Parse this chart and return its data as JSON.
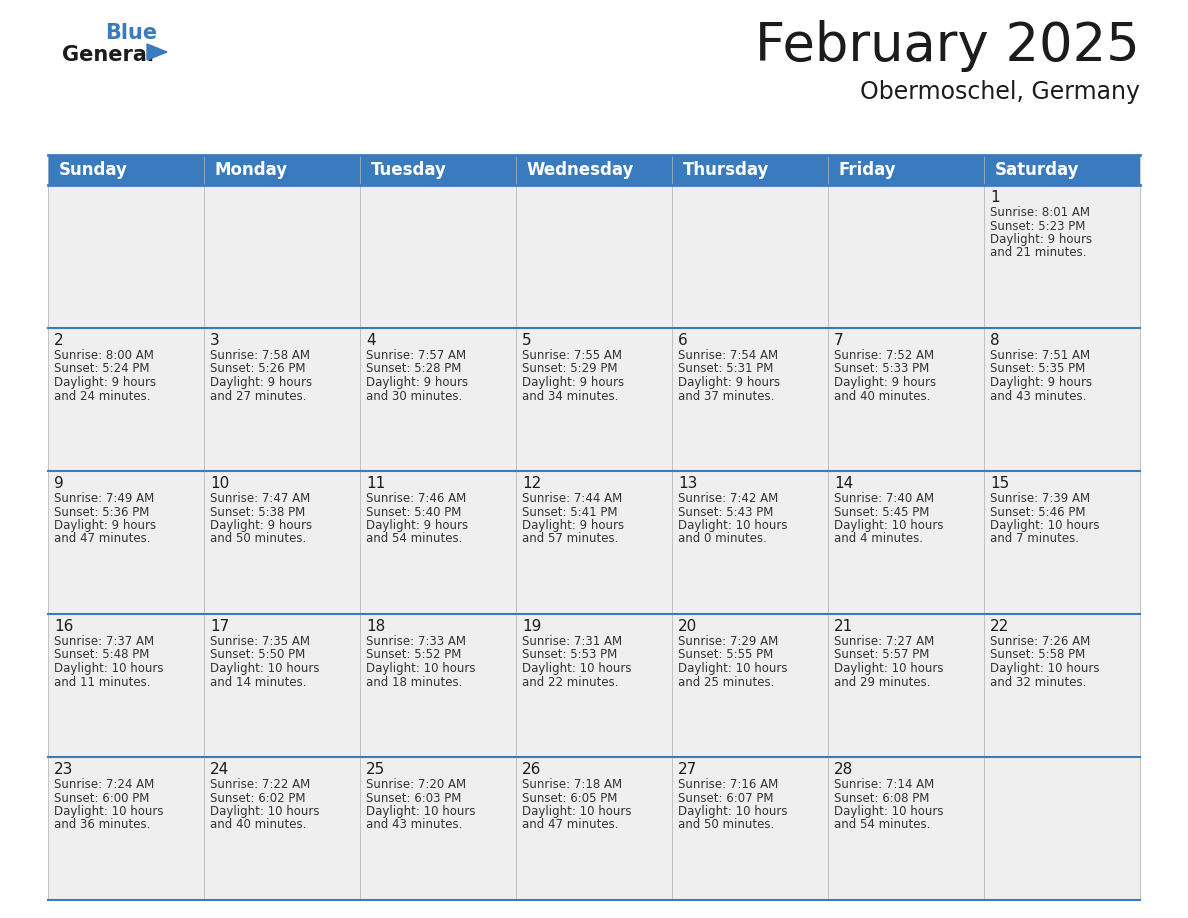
{
  "title": "February 2025",
  "subtitle": "Obermoschel, Germany",
  "header_color": "#3a7bbf",
  "header_text_color": "#ffffff",
  "day_names": [
    "Sunday",
    "Monday",
    "Tuesday",
    "Wednesday",
    "Thursday",
    "Friday",
    "Saturday"
  ],
  "title_fontsize": 38,
  "subtitle_fontsize": 17,
  "header_fontsize": 12,
  "cell_fontsize": 8.5,
  "day_num_fontsize": 11,
  "background_color": "#ffffff",
  "cell_bg_color": "#efefef",
  "separator_color": "#3a7bbf",
  "text_color": "#333333",
  "days": [
    {
      "day": 1,
      "col": 6,
      "row": 0,
      "sunrise": "8:01 AM",
      "sunset": "5:23 PM",
      "daylight_h": "9 hours",
      "daylight_m": "and 21 minutes."
    },
    {
      "day": 2,
      "col": 0,
      "row": 1,
      "sunrise": "8:00 AM",
      "sunset": "5:24 PM",
      "daylight_h": "9 hours",
      "daylight_m": "and 24 minutes."
    },
    {
      "day": 3,
      "col": 1,
      "row": 1,
      "sunrise": "7:58 AM",
      "sunset": "5:26 PM",
      "daylight_h": "9 hours",
      "daylight_m": "and 27 minutes."
    },
    {
      "day": 4,
      "col": 2,
      "row": 1,
      "sunrise": "7:57 AM",
      "sunset": "5:28 PM",
      "daylight_h": "9 hours",
      "daylight_m": "and 30 minutes."
    },
    {
      "day": 5,
      "col": 3,
      "row": 1,
      "sunrise": "7:55 AM",
      "sunset": "5:29 PM",
      "daylight_h": "9 hours",
      "daylight_m": "and 34 minutes."
    },
    {
      "day": 6,
      "col": 4,
      "row": 1,
      "sunrise": "7:54 AM",
      "sunset": "5:31 PM",
      "daylight_h": "9 hours",
      "daylight_m": "and 37 minutes."
    },
    {
      "day": 7,
      "col": 5,
      "row": 1,
      "sunrise": "7:52 AM",
      "sunset": "5:33 PM",
      "daylight_h": "9 hours",
      "daylight_m": "and 40 minutes."
    },
    {
      "day": 8,
      "col": 6,
      "row": 1,
      "sunrise": "7:51 AM",
      "sunset": "5:35 PM",
      "daylight_h": "9 hours",
      "daylight_m": "and 43 minutes."
    },
    {
      "day": 9,
      "col": 0,
      "row": 2,
      "sunrise": "7:49 AM",
      "sunset": "5:36 PM",
      "daylight_h": "9 hours",
      "daylight_m": "and 47 minutes."
    },
    {
      "day": 10,
      "col": 1,
      "row": 2,
      "sunrise": "7:47 AM",
      "sunset": "5:38 PM",
      "daylight_h": "9 hours",
      "daylight_m": "and 50 minutes."
    },
    {
      "day": 11,
      "col": 2,
      "row": 2,
      "sunrise": "7:46 AM",
      "sunset": "5:40 PM",
      "daylight_h": "9 hours",
      "daylight_m": "and 54 minutes."
    },
    {
      "day": 12,
      "col": 3,
      "row": 2,
      "sunrise": "7:44 AM",
      "sunset": "5:41 PM",
      "daylight_h": "9 hours",
      "daylight_m": "and 57 minutes."
    },
    {
      "day": 13,
      "col": 4,
      "row": 2,
      "sunrise": "7:42 AM",
      "sunset": "5:43 PM",
      "daylight_h": "10 hours",
      "daylight_m": "and 0 minutes."
    },
    {
      "day": 14,
      "col": 5,
      "row": 2,
      "sunrise": "7:40 AM",
      "sunset": "5:45 PM",
      "daylight_h": "10 hours",
      "daylight_m": "and 4 minutes."
    },
    {
      "day": 15,
      "col": 6,
      "row": 2,
      "sunrise": "7:39 AM",
      "sunset": "5:46 PM",
      "daylight_h": "10 hours",
      "daylight_m": "and 7 minutes."
    },
    {
      "day": 16,
      "col": 0,
      "row": 3,
      "sunrise": "7:37 AM",
      "sunset": "5:48 PM",
      "daylight_h": "10 hours",
      "daylight_m": "and 11 minutes."
    },
    {
      "day": 17,
      "col": 1,
      "row": 3,
      "sunrise": "7:35 AM",
      "sunset": "5:50 PM",
      "daylight_h": "10 hours",
      "daylight_m": "and 14 minutes."
    },
    {
      "day": 18,
      "col": 2,
      "row": 3,
      "sunrise": "7:33 AM",
      "sunset": "5:52 PM",
      "daylight_h": "10 hours",
      "daylight_m": "and 18 minutes."
    },
    {
      "day": 19,
      "col": 3,
      "row": 3,
      "sunrise": "7:31 AM",
      "sunset": "5:53 PM",
      "daylight_h": "10 hours",
      "daylight_m": "and 22 minutes."
    },
    {
      "day": 20,
      "col": 4,
      "row": 3,
      "sunrise": "7:29 AM",
      "sunset": "5:55 PM",
      "daylight_h": "10 hours",
      "daylight_m": "and 25 minutes."
    },
    {
      "day": 21,
      "col": 5,
      "row": 3,
      "sunrise": "7:27 AM",
      "sunset": "5:57 PM",
      "daylight_h": "10 hours",
      "daylight_m": "and 29 minutes."
    },
    {
      "day": 22,
      "col": 6,
      "row": 3,
      "sunrise": "7:26 AM",
      "sunset": "5:58 PM",
      "daylight_h": "10 hours",
      "daylight_m": "and 32 minutes."
    },
    {
      "day": 23,
      "col": 0,
      "row": 4,
      "sunrise": "7:24 AM",
      "sunset": "6:00 PM",
      "daylight_h": "10 hours",
      "daylight_m": "and 36 minutes."
    },
    {
      "day": 24,
      "col": 1,
      "row": 4,
      "sunrise": "7:22 AM",
      "sunset": "6:02 PM",
      "daylight_h": "10 hours",
      "daylight_m": "and 40 minutes."
    },
    {
      "day": 25,
      "col": 2,
      "row": 4,
      "sunrise": "7:20 AM",
      "sunset": "6:03 PM",
      "daylight_h": "10 hours",
      "daylight_m": "and 43 minutes."
    },
    {
      "day": 26,
      "col": 3,
      "row": 4,
      "sunrise": "7:18 AM",
      "sunset": "6:05 PM",
      "daylight_h": "10 hours",
      "daylight_m": "and 47 minutes."
    },
    {
      "day": 27,
      "col": 4,
      "row": 4,
      "sunrise": "7:16 AM",
      "sunset": "6:07 PM",
      "daylight_h": "10 hours",
      "daylight_m": "and 50 minutes."
    },
    {
      "day": 28,
      "col": 5,
      "row": 4,
      "sunrise": "7:14 AM",
      "sunset": "6:08 PM",
      "daylight_h": "10 hours",
      "daylight_m": "and 54 minutes."
    }
  ]
}
